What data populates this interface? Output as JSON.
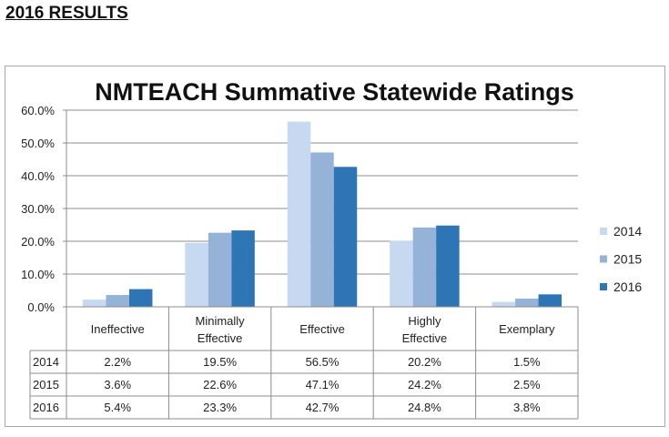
{
  "page_heading": "2016 RESULTS",
  "chart_data": {
    "type": "bar",
    "title": "NMTEACH Summative Statewide Ratings",
    "categories": [
      [
        "Ineffective"
      ],
      [
        "Minimally",
        "Effective"
      ],
      [
        "Effective"
      ],
      [
        "Highly",
        "Effective"
      ],
      [
        "Exemplary"
      ]
    ],
    "series": [
      {
        "name": "2014",
        "color": "#c6d9f0",
        "values": [
          2.2,
          19.5,
          56.5,
          20.2,
          1.5
        ],
        "labels": [
          "2.2%",
          "19.5%",
          "56.5%",
          "20.2%",
          "1.5%"
        ]
      },
      {
        "name": "2015",
        "color": "#95b3d7",
        "values": [
          3.6,
          22.6,
          47.1,
          24.2,
          2.5
        ],
        "labels": [
          "3.6%",
          "22.6%",
          "47.1%",
          "24.2%",
          "2.5%"
        ]
      },
      {
        "name": "2016",
        "color": "#2e75b6",
        "values": [
          5.4,
          23.3,
          42.7,
          24.8,
          3.8
        ],
        "labels": [
          "5.4%",
          "23.3%",
          "42.7%",
          "24.8%",
          "3.8%"
        ]
      }
    ],
    "yticks": [
      "0.0%",
      "10.0%",
      "20.0%",
      "30.0%",
      "40.0%",
      "50.0%",
      "60.0%"
    ],
    "ylim": [
      0,
      60
    ],
    "grid": true,
    "legend": "right",
    "data_table": true
  }
}
